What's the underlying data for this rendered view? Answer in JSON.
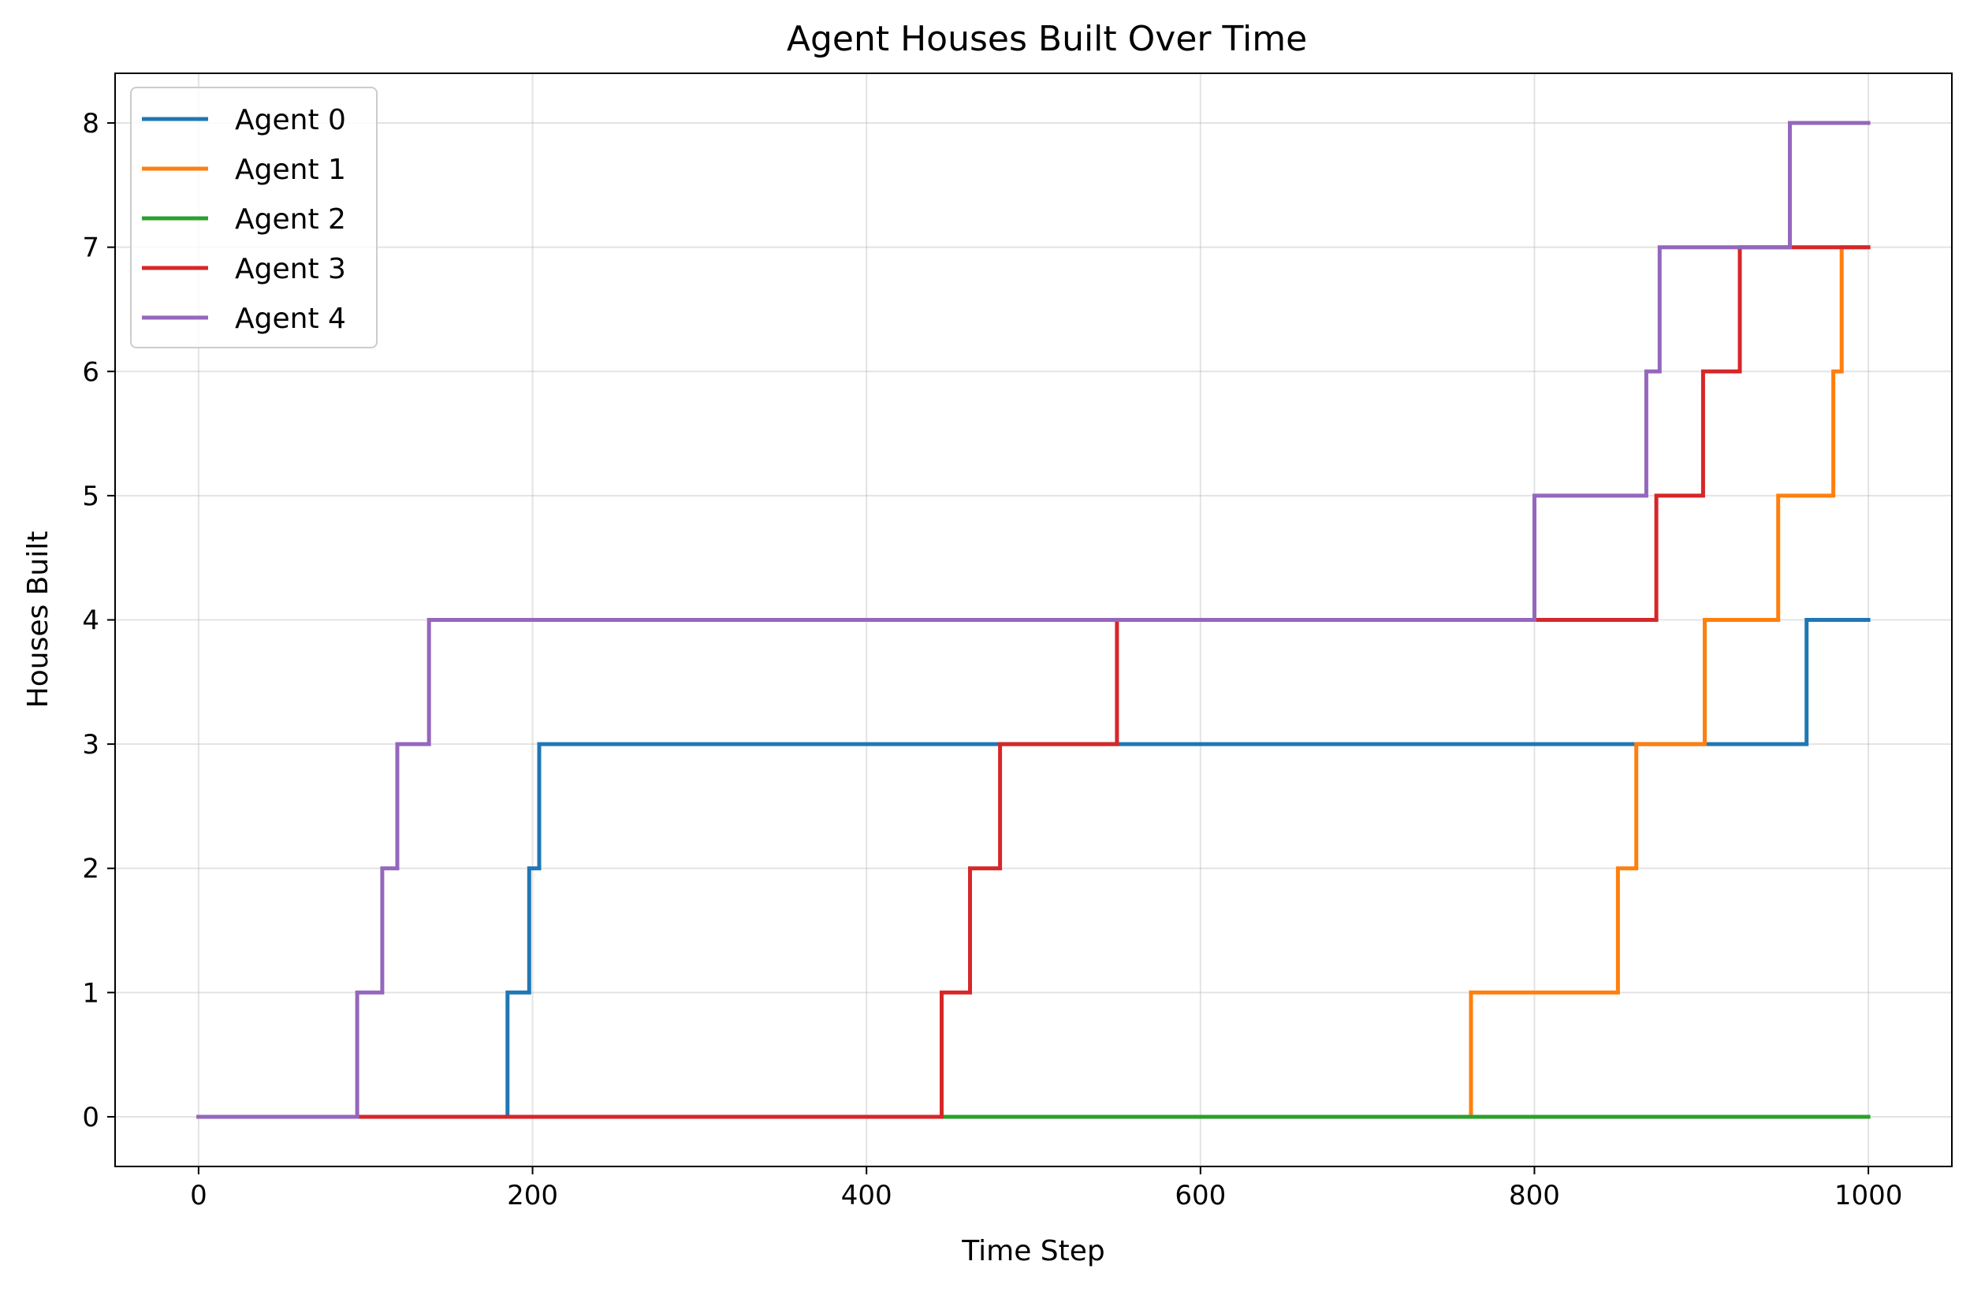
{
  "chart_data": {
    "type": "line",
    "step": "post",
    "title": "Agent Houses Built Over Time",
    "xlabel": "Time Step",
    "ylabel": "Houses Built",
    "xlim": [
      -50,
      1050
    ],
    "ylim": [
      -0.4,
      8.4
    ],
    "xticks": [
      0,
      200,
      400,
      600,
      800,
      1000
    ],
    "yticks": [
      0,
      1,
      2,
      3,
      4,
      5,
      6,
      7,
      8
    ],
    "grid": true,
    "legend_placement": "upper-left",
    "series": [
      {
        "name": "Agent 0",
        "color": "#1f77b4",
        "points": [
          [
            0,
            0
          ],
          [
            185,
            0
          ],
          [
            185,
            1
          ],
          [
            198,
            1
          ],
          [
            198,
            2
          ],
          [
            204,
            2
          ],
          [
            204,
            3
          ],
          [
            963,
            3
          ],
          [
            963,
            4
          ],
          [
            1000,
            4
          ]
        ]
      },
      {
        "name": "Agent 1",
        "color": "#ff7f0e",
        "points": [
          [
            0,
            0
          ],
          [
            762,
            0
          ],
          [
            762,
            1
          ],
          [
            850,
            1
          ],
          [
            850,
            2
          ],
          [
            861,
            2
          ],
          [
            861,
            3
          ],
          [
            902,
            3
          ],
          [
            902,
            4
          ],
          [
            946,
            4
          ],
          [
            946,
            5
          ],
          [
            979,
            5
          ],
          [
            979,
            6
          ],
          [
            984,
            6
          ],
          [
            984,
            7
          ],
          [
            1000,
            7
          ]
        ]
      },
      {
        "name": "Agent 2",
        "color": "#2ca02c",
        "points": [
          [
            0,
            0
          ],
          [
            1000,
            0
          ]
        ]
      },
      {
        "name": "Agent 3",
        "color": "#d62728",
        "points": [
          [
            0,
            0
          ],
          [
            445,
            0
          ],
          [
            445,
            1
          ],
          [
            462,
            1
          ],
          [
            462,
            2
          ],
          [
            480,
            2
          ],
          [
            480,
            3
          ],
          [
            550,
            3
          ],
          [
            550,
            4
          ],
          [
            873,
            4
          ],
          [
            873,
            5
          ],
          [
            901,
            5
          ],
          [
            901,
            6
          ],
          [
            923,
            6
          ],
          [
            923,
            7
          ],
          [
            1000,
            7
          ]
        ]
      },
      {
        "name": "Agent 4",
        "color": "#9467bd",
        "points": [
          [
            0,
            0
          ],
          [
            95,
            0
          ],
          [
            95,
            1
          ],
          [
            110,
            1
          ],
          [
            110,
            2
          ],
          [
            119,
            2
          ],
          [
            119,
            3
          ],
          [
            138,
            3
          ],
          [
            138,
            4
          ],
          [
            800,
            4
          ],
          [
            800,
            5
          ],
          [
            867,
            5
          ],
          [
            867,
            6
          ],
          [
            875,
            6
          ],
          [
            875,
            7
          ],
          [
            953,
            7
          ],
          [
            953,
            8
          ],
          [
            1000,
            8
          ]
        ]
      }
    ]
  }
}
